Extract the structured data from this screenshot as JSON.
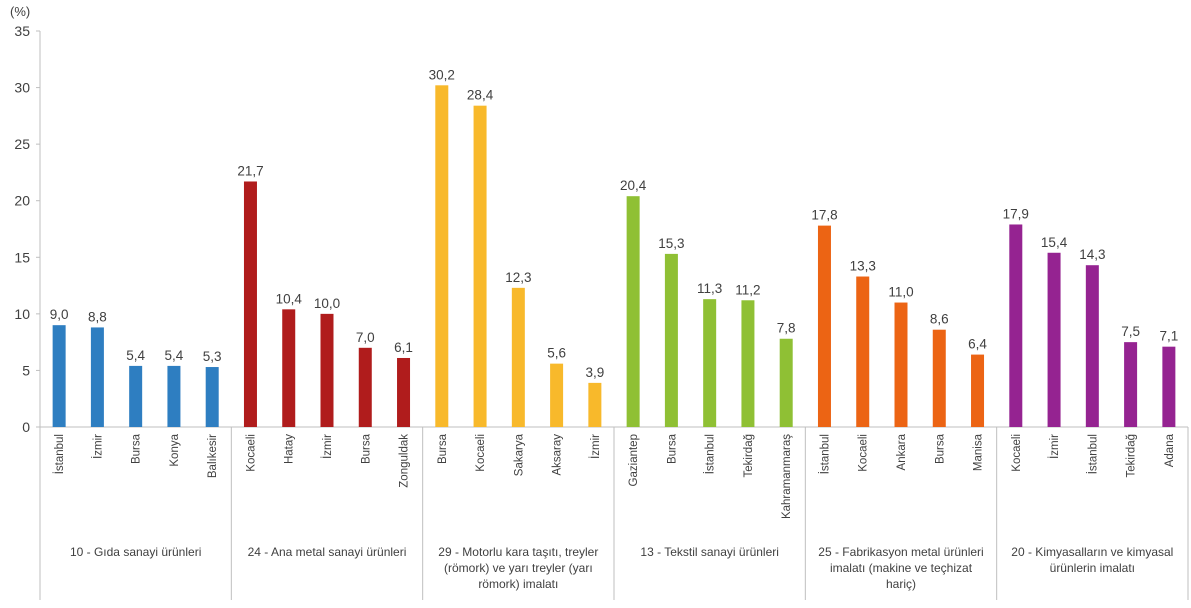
{
  "chart_data": {
    "type": "bar",
    "ylabel": "(%)",
    "ylim": [
      0,
      35
    ],
    "yticks": [
      0,
      5,
      10,
      15,
      20,
      25,
      30,
      35
    ],
    "grid": false,
    "legend": "none",
    "groups": [
      {
        "label_lines": [
          "10 - Gıda sanayi ürünleri"
        ],
        "color": "#2e7ec1",
        "categories": [
          "İstanbul",
          "İzmir",
          "Bursa",
          "Konya",
          "Balıkesir"
        ],
        "values": [
          9.0,
          8.8,
          5.4,
          5.4,
          5.3
        ],
        "value_labels": [
          "9,0",
          "8,8",
          "5,4",
          "5,4",
          "5,3"
        ]
      },
      {
        "label_lines": [
          "24 - Ana metal sanayi ürünleri"
        ],
        "color": "#b01c1c",
        "categories": [
          "Kocaeli",
          "Hatay",
          "İzmir",
          "Bursa",
          "Zonguldak"
        ],
        "values": [
          21.7,
          10.4,
          10.0,
          7.0,
          6.1
        ],
        "value_labels": [
          "21,7",
          "10,4",
          "10,0",
          "7,0",
          "6,1"
        ]
      },
      {
        "label_lines": [
          "29 - Motorlu kara taşıtı, treyler",
          "(römork) ve yarı treyler (yarı",
          "römork) imalatı"
        ],
        "color": "#f8b92b",
        "categories": [
          "Bursa",
          "Kocaeli",
          "Sakarya",
          "Aksaray",
          "İzmir"
        ],
        "values": [
          30.2,
          28.4,
          12.3,
          5.6,
          3.9
        ],
        "value_labels": [
          "30,2",
          "28,4",
          "12,3",
          "5,6",
          "3,9"
        ]
      },
      {
        "label_lines": [
          "13 - Tekstil sanayi ürünleri"
        ],
        "color": "#8fc034",
        "categories": [
          "Gaziantep",
          "Bursa",
          "İstanbul",
          "Tekirdağ",
          "Kahramanmaraş"
        ],
        "values": [
          20.4,
          15.3,
          11.3,
          11.2,
          7.8
        ],
        "value_labels": [
          "20,4",
          "15,3",
          "11,3",
          "11,2",
          "7,8"
        ]
      },
      {
        "label_lines": [
          "25 - Fabrikasyon metal ürünleri",
          "imalatı (makine ve teçhizat",
          "hariç)"
        ],
        "color": "#ec6414",
        "categories": [
          "İstanbul",
          "Kocaeli",
          "Ankara",
          "Bursa",
          "Manisa"
        ],
        "values": [
          17.8,
          13.3,
          11.0,
          8.6,
          6.4
        ],
        "value_labels": [
          "17,8",
          "13,3",
          "11,0",
          "8,6",
          "6,4"
        ]
      },
      {
        "label_lines": [
          "20 - Kimyasalların ve kimyasal",
          "ürünlerin imalatı"
        ],
        "color": "#952391",
        "categories": [
          "Kocaeli",
          "İzmir",
          "İstanbul",
          "Tekirdağ",
          "Adana"
        ],
        "values": [
          17.9,
          15.4,
          14.3,
          7.5,
          7.1
        ],
        "value_labels": [
          "17,9",
          "15,4",
          "14,3",
          "7,5",
          "7,1"
        ]
      }
    ]
  }
}
